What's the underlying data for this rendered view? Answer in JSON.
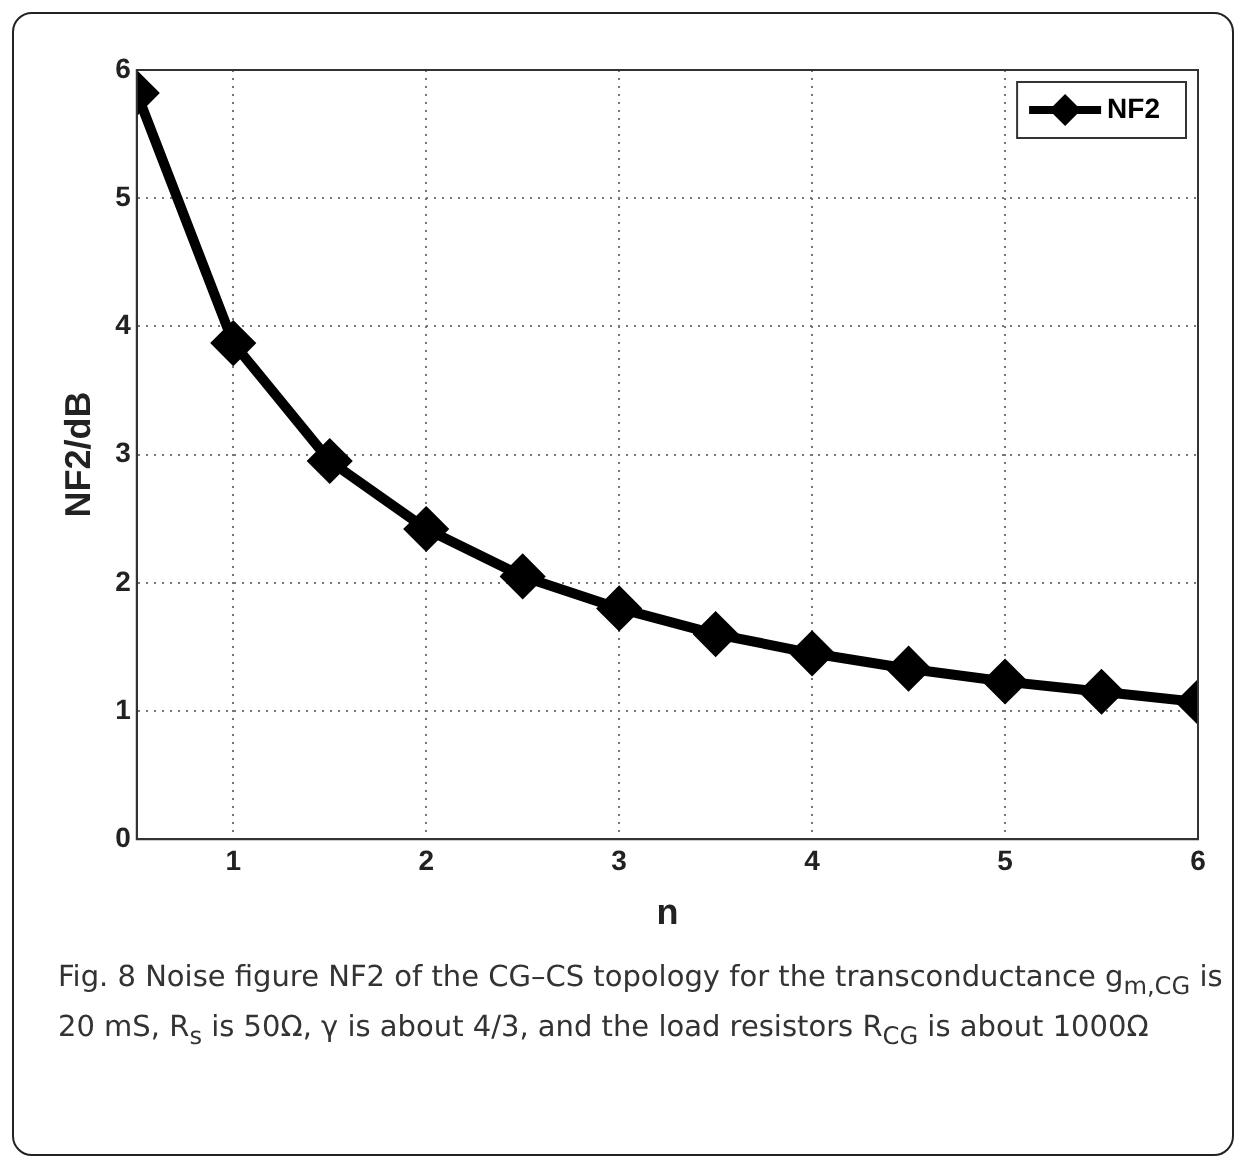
{
  "chart_data": {
    "type": "line",
    "xlabel": "n",
    "ylabel": "NF2/dB",
    "x": [
      0.5,
      1,
      1.5,
      2,
      2.5,
      3,
      3.5,
      4,
      4.5,
      5,
      5.5,
      6
    ],
    "series": [
      {
        "name": "NF2",
        "color": "#000000",
        "values": [
          5.82,
          3.87,
          2.95,
          2.42,
          2.05,
          1.8,
          1.6,
          1.45,
          1.33,
          1.23,
          1.15,
          1.07
        ]
      }
    ],
    "xlim": [
      0.5,
      6
    ],
    "xticks": [
      1,
      2,
      3,
      4,
      5,
      6
    ],
    "ylim": [
      0,
      6
    ],
    "yticks": [
      0,
      1,
      2,
      3,
      4,
      5,
      6
    ],
    "grid": true,
    "legend": "top right",
    "marker": "diamond",
    "line_style": "solid",
    "annotations": [
      "Fig. 8 Noise figure NF2 of the CG–CS topology for the transconductance g$_{m,CG}$ is 20 mS, R$_{s}$ is 50Ω, γ is about 4/3, and the load resistors R$_{CG}$ is about 1000Ω"
    ]
  }
}
